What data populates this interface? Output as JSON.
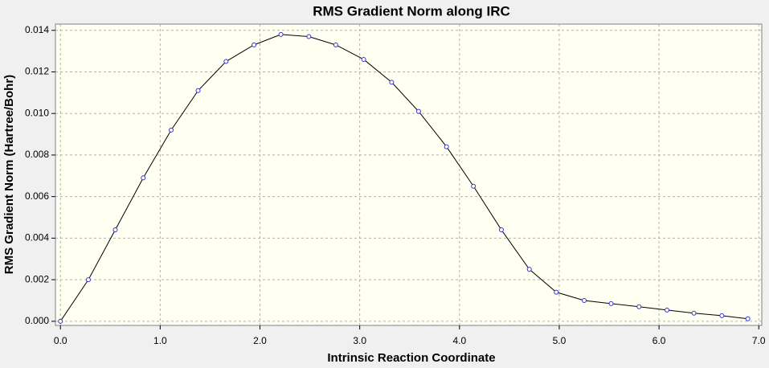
{
  "chart_data": {
    "type": "line",
    "title": "RMS Gradient Norm along IRC",
    "x_label": "Intrinsic Reaction Coordinate",
    "y_label": "RMS Gradient Norm (Hartree/Bohr)",
    "x": [
      0,
      0.28,
      0.55,
      0.83,
      1.11,
      1.38,
      1.66,
      1.94,
      2.21,
      2.49,
      2.76,
      3.04,
      3.32,
      3.59,
      3.87,
      4.14,
      4.42,
      4.7,
      4.97,
      5.25,
      5.52,
      5.8,
      6.08,
      6.35,
      6.63,
      6.89
    ],
    "series": [
      {
        "color": "#000000",
        "marker_color": "#3333cc",
        "values": [
          0,
          0.002,
          0.0044,
          0.0069,
          0.0092,
          0.0111,
          0.0125,
          0.0133,
          0.0138,
          0.0137,
          0.0133,
          0.0126,
          0.0115,
          0.0101,
          0.0084,
          0.0065,
          0.0044,
          0.0025,
          0.0014,
          0.001,
          0.00085,
          0.0007,
          0.00054,
          0.00039,
          0.00027,
          0.00012
        ]
      }
    ],
    "xlim": [
      -0.05,
      7.03
    ],
    "ylim": [
      -0.0002,
      0.0143
    ],
    "xticks": [
      {
        "value": 0,
        "label": "0.0"
      },
      {
        "value": 1,
        "label": "1.0"
      },
      {
        "value": 2,
        "label": "2.0"
      },
      {
        "value": 3,
        "label": "3.0"
      },
      {
        "value": 4,
        "label": "4.0"
      },
      {
        "value": 5,
        "label": "5.0"
      },
      {
        "value": 6,
        "label": "6.0"
      },
      {
        "value": 7,
        "label": "7.0"
      }
    ],
    "yticks": [
      {
        "value": 0,
        "label": "0.000"
      },
      {
        "value": 0.002,
        "label": "0.002"
      },
      {
        "value": 0.004,
        "label": "0.004"
      },
      {
        "value": 0.006,
        "label": "0.006"
      },
      {
        "value": 0.008,
        "label": "0.008"
      },
      {
        "value": 0.01,
        "label": "0.010"
      },
      {
        "value": 0.012,
        "label": "0.012"
      },
      {
        "value": 0.014,
        "label": "0.014"
      }
    ],
    "grid": true,
    "plot_background": "#fffff2"
  }
}
